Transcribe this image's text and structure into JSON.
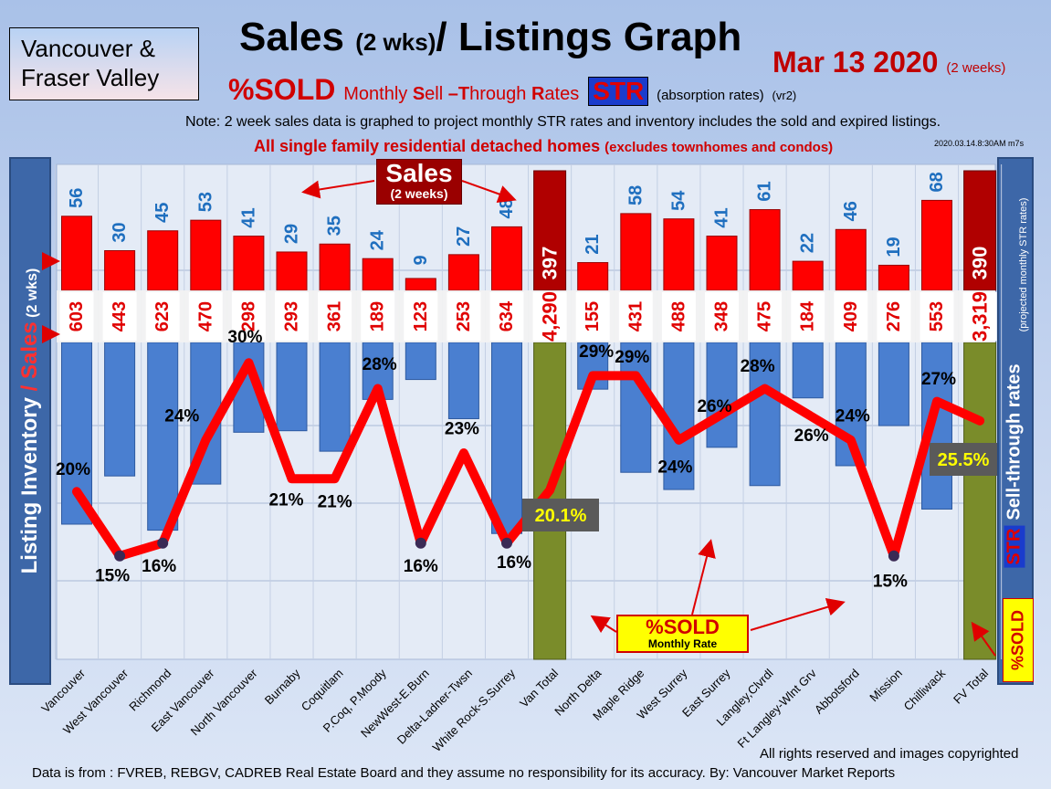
{
  "header": {
    "region_line1": "Vancouver &",
    "region_line2": "Fraser Valley",
    "title_main": "Sales ",
    "title_sub": "(2 wks)",
    "title_rest": "/ Listings Graph",
    "date": "Mar 13 2020",
    "date_note": "(2 weeks)",
    "sold_pct": "%SOLD",
    "monthly_S": "S",
    "monthly_ell": "ell ",
    "monthly_dash_T": "–T",
    "monthly_hrough": "hrough ",
    "monthly_R": "R",
    "monthly_ates": "ates",
    "monthly_prefix": "Monthly ",
    "str_badge": "STR",
    "absorption": "(absorption rates)",
    "version": "(vr2)",
    "note": "Note: 2 week sales data is graphed to project monthly STR rates and inventory includes the sold and expired listings.",
    "scope_main": "All single family residential detached homes ",
    "scope_sub": "(excludes townhomes and condos)",
    "stamp": "2020.03.14.8:30AM m7s"
  },
  "left_axis": {
    "part1": "Listing Inventory ",
    "part2": "/ Sales",
    "part3": " (2 wks)"
  },
  "right_axis": {
    "str_tag": "STR",
    "label": "Sell-through rates",
    "sub_label": "(projected monthly STR rates)",
    "sold_tag": "%SOLD"
  },
  "callouts": {
    "sales_big": "Sales",
    "sales_small": "(2 weeks)",
    "sold_big": "%SOLD",
    "sold_small": "Monthly Rate"
  },
  "footer": {
    "rights": "All rights reserved and  images copyrighted",
    "source": "Data is from : FVREB, REBGV, CADREB Real Estate Board and they assume no responsibility for its accuracy. By: Vancouver Market Reports"
  },
  "colors": {
    "sales_bar": "#ff0000",
    "inventory_bar": "#4a7fd0",
    "total_sales_bar": "#b00000",
    "total_inventory_bar": "#7a8c2a",
    "str_line": "#ff0000",
    "sales_label": "#1f6fbf",
    "inventory_label": "#e00000",
    "pct_label": "#000000",
    "total_pct_box": "#5a5a5a",
    "total_pct_text": "#ffff00"
  },
  "chart_data": {
    "type": "bar",
    "categories": [
      "Vancouver",
      "West Vancouver",
      "Richmond",
      "East Vancouver",
      "North Vancouver",
      "Burnaby",
      "Coquitlam",
      "P.Coq, P.Moody",
      "NewWest-E.Burn",
      "Delta-Ladner-Twsn",
      "White Rock-S.Surrey",
      "Van Total",
      "North Delta",
      "Maple Ridge",
      "West Surrey",
      "East Surrey",
      "Langley,Clvrdl",
      "Ft Langley-Wlnt Grv",
      "Abbotsford",
      "Mission",
      "Chilliwack",
      "FV Total"
    ],
    "series": [
      {
        "name": "Sales",
        "values": [
          56,
          30,
          45,
          53,
          41,
          29,
          35,
          24,
          9,
          27,
          48,
          397,
          21,
          58,
          54,
          41,
          61,
          22,
          46,
          19,
          68,
          390
        ]
      },
      {
        "name": "Listing Inventory",
        "values": [
          603,
          443,
          623,
          470,
          298,
          293,
          361,
          189,
          123,
          253,
          634,
          4290,
          155,
          431,
          488,
          348,
          475,
          184,
          409,
          276,
          553,
          3319
        ]
      },
      {
        "name": "%SOLD",
        "values": [
          20,
          15,
          16,
          24,
          30,
          21,
          21,
          28,
          16,
          23,
          16,
          20.1,
          29,
          29,
          24,
          26,
          28,
          26,
          24,
          15,
          27,
          25.5
        ]
      }
    ],
    "value_labels": {
      "sales": [
        "56",
        "30",
        "45",
        "53",
        "41",
        "29",
        "35",
        "24",
        "9",
        "27",
        "48",
        "397",
        "21",
        "58",
        "54",
        "41",
        "61",
        "22",
        "46",
        "19",
        "68",
        "390"
      ],
      "inventory": [
        "603",
        "443",
        "623",
        "470",
        "298",
        "293",
        "361",
        "189",
        "123",
        "253",
        "634",
        "4,290",
        "155",
        "431",
        "488",
        "348",
        "475",
        "184",
        "409",
        "276",
        "553",
        "3,319"
      ],
      "pct": [
        "20%",
        "15%",
        "16%",
        "24%",
        "30%",
        "21%",
        "21%",
        "28%",
        "16%",
        "23%",
        "16%",
        "20.1%",
        "29%",
        "29%",
        "24%",
        "26%",
        "28%",
        "26%",
        "24%",
        "15%",
        "27%",
        "25.5%"
      ]
    },
    "totals_index": [
      11,
      21
    ],
    "grid": true
  }
}
